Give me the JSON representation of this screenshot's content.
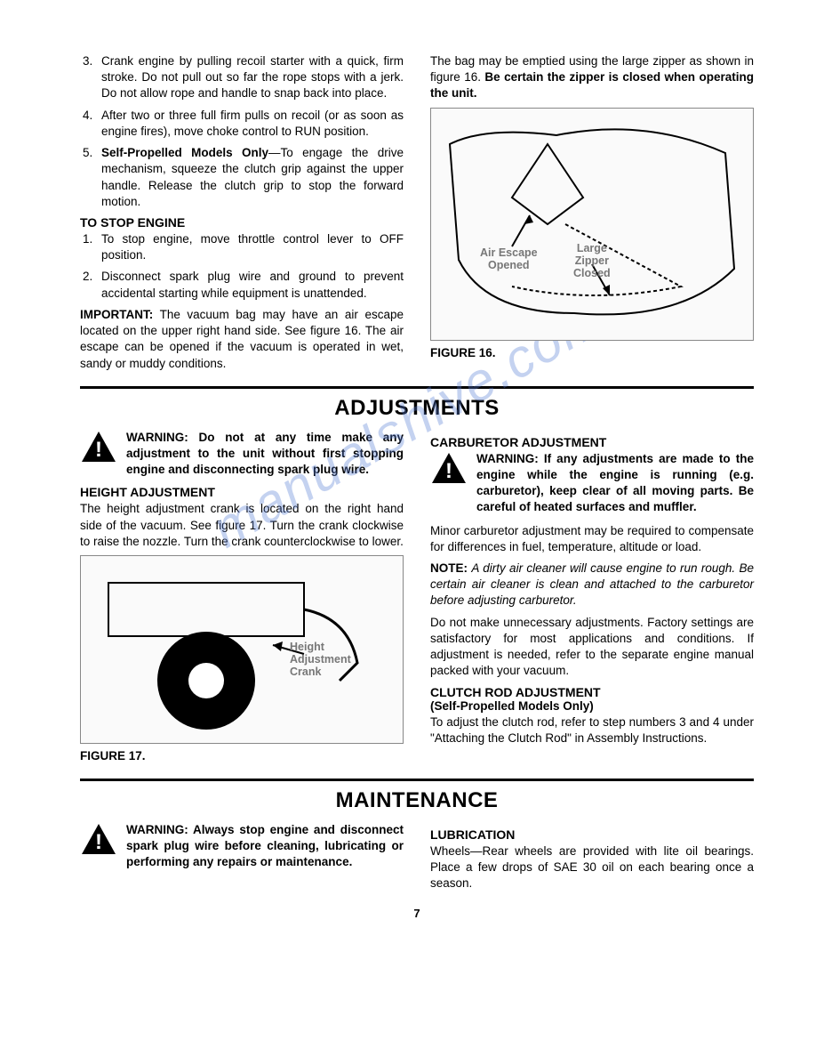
{
  "watermark": "manualshive.com",
  "top": {
    "left": {
      "list_start": 3,
      "items": [
        "Crank engine by pulling recoil starter with a quick, firm stroke. Do not pull out so far the rope stops with a jerk. Do not allow rope and handle to snap back into place.",
        "After two or three full firm pulls on recoil (or as soon as engine fires), move choke control to RUN position.",
        "<b>Self-Propelled Models Only</b>—To engage the drive mechanism, squeeze the clutch grip against the upper handle. Release the clutch grip to stop the forward motion."
      ],
      "heading_stop": "TO STOP ENGINE",
      "stop_items": [
        "To stop engine, move throttle control lever to OFF position.",
        "Disconnect spark plug wire and ground to prevent accidental starting while equipment is unattended."
      ],
      "important": "<b>IMPORTANT:</b> The vacuum bag may have an air escape located on the upper right hand side. See figure 16. The air escape can be opened if the vacuum is operated in wet, sandy or muddy conditions."
    },
    "right": {
      "intro": "The bag may be emptied using the large zipper as shown in figure 16. <b>Be certain the zipper is closed when operating the unit.</b>",
      "fig_labels": {
        "air_escape": "Air Escape\nOpened",
        "zipper": "Large\nZipper\nClosed"
      },
      "fig_caption": "FIGURE 16."
    }
  },
  "adjustments": {
    "title": "ADJUSTMENTS",
    "left": {
      "warning": "WARNING: Do not at any time make any adjustment to the unit without first stopping engine and disconnecting spark plug wire.",
      "heading_height": "HEIGHT ADJUSTMENT",
      "height_text": "The height adjustment crank is located on the right hand side of the vacuum. See figure 17. Turn the crank clockwise to raise the nozzle. Turn the crank counterclockwise to lower.",
      "fig_label": "Height\nAdjustment\nCrank",
      "fig_caption": "FIGURE 17."
    },
    "right": {
      "heading_carb": "CARBURETOR ADJUSTMENT",
      "warning": "WARNING: If any adjustments are made to the engine while the engine is running (e.g. carburetor), keep clear of all moving parts. Be careful of heated surfaces and muffler.",
      "carb_text1": "Minor carburetor adjustment may be required to compensate for differences in fuel, temperature, altitude or load.",
      "note": "<b>NOTE:</b> <i>A dirty air cleaner will cause engine to run rough. Be certain air cleaner is clean and attached to the carburetor before adjusting carburetor.</i>",
      "carb_text2": "Do not make unnecessary adjustments. Factory settings are satisfactory for most applications and conditions. If adjustment is needed, refer to the separate engine manual packed with your vacuum.",
      "heading_clutch": "CLUTCH ROD ADJUSTMENT",
      "subheading_clutch": "(Self-Propelled Models Only)",
      "clutch_text": "To adjust the clutch rod, refer to step numbers 3 and 4 under \"Attaching the Clutch Rod\" in Assembly Instructions."
    }
  },
  "maintenance": {
    "title": "MAINTENANCE",
    "left": {
      "warning": "WARNING: Always stop engine and disconnect spark plug wire before cleaning, lubricating or performing any repairs or maintenance."
    },
    "right": {
      "heading_lube": "LUBRICATION",
      "lube_text": "Wheels—Rear wheels are provided with lite oil bearings. Place a few drops of SAE 30 oil on each bearing once a season."
    }
  },
  "page_number": "7",
  "colors": {
    "text": "#000000",
    "watermark": "#5a7fd6",
    "figure_border": "#888888"
  },
  "fonts": {
    "body_size": 13.5,
    "heading_size": 14,
    "section_title_size": 24
  }
}
